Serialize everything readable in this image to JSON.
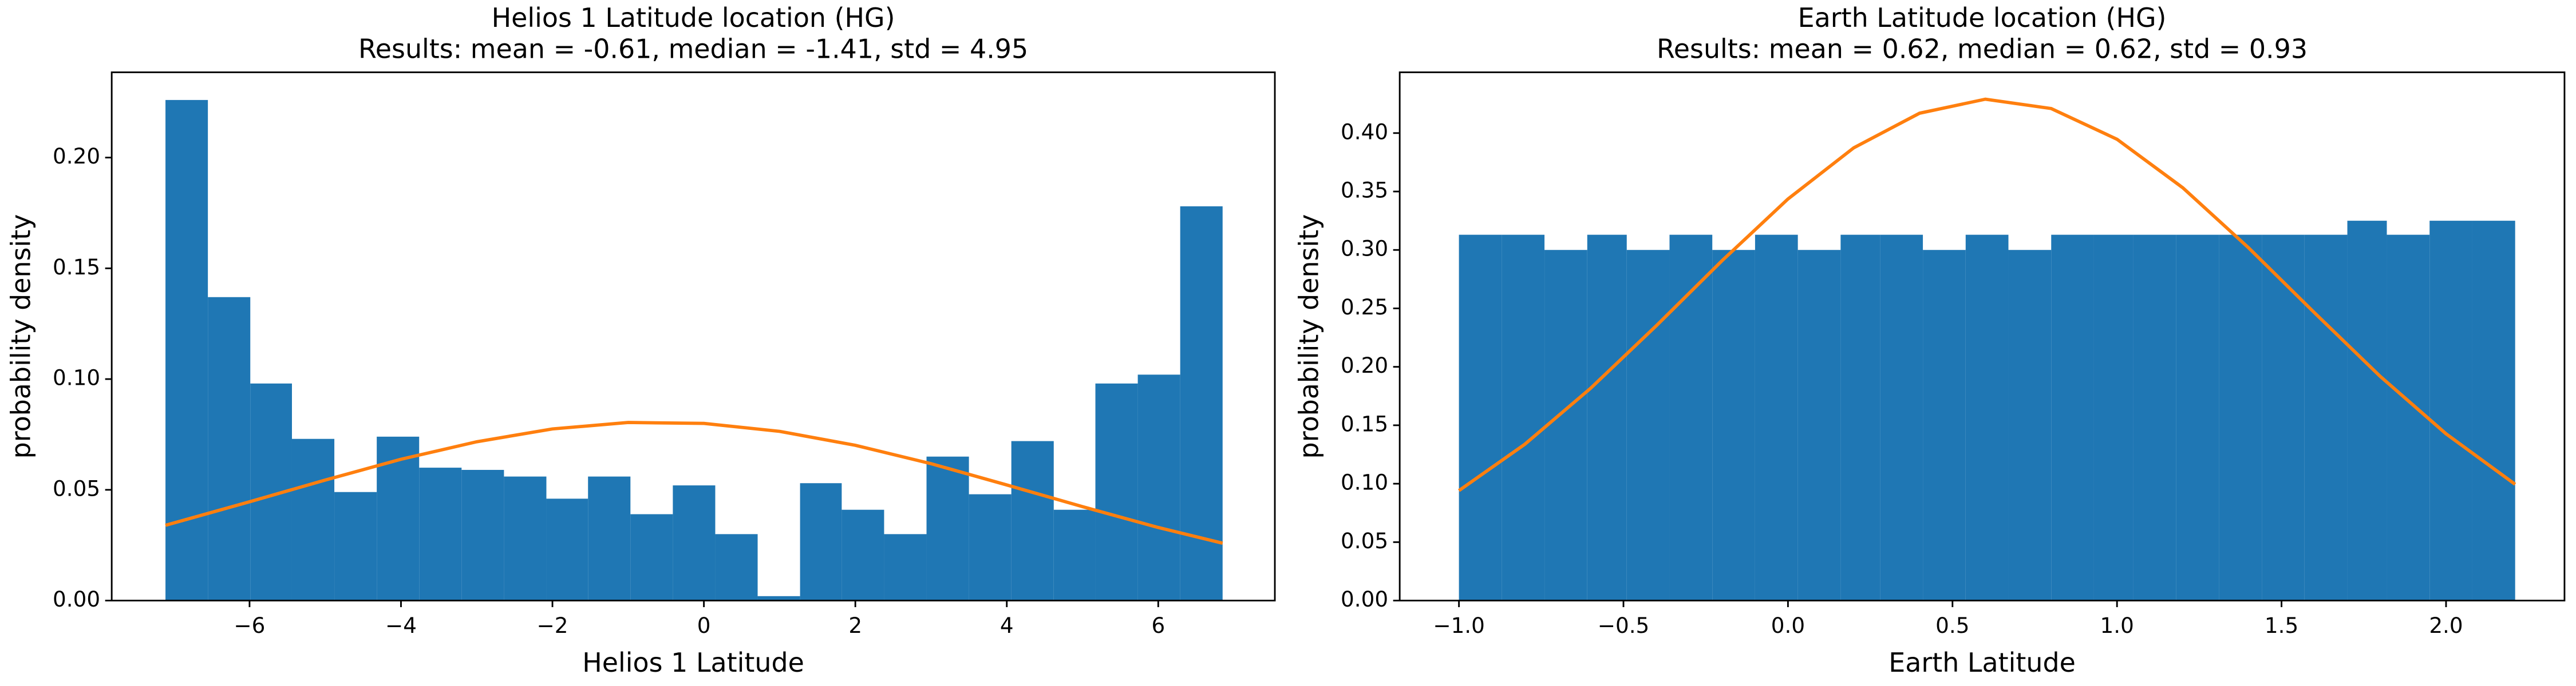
{
  "chart_data": [
    {
      "type": "histogram",
      "title": "Helios 1 Latitude location (HG)",
      "subtitle": "Results: mean = -0.61, median = -1.41, std = 4.95",
      "x_label": "Helios 1 Latitude",
      "y_label": "probability density",
      "bins": [
        -7.11,
        -6.55,
        -5.99,
        -5.44,
        -4.88,
        -4.32,
        -3.76,
        -3.2,
        -2.64,
        -2.08,
        -1.53,
        -0.97,
        -0.41,
        0.15,
        0.71,
        1.27,
        1.82,
        2.38,
        2.94,
        3.5,
        4.06,
        4.62,
        5.17,
        5.73,
        6.29,
        6.85
      ],
      "values": [
        0.226,
        0.137,
        0.098,
        0.073,
        0.049,
        0.074,
        0.06,
        0.059,
        0.056,
        0.046,
        0.056,
        0.039,
        0.052,
        0.03,
        0.002,
        0.053,
        0.041,
        0.03,
        0.065,
        0.048,
        0.072,
        0.041,
        0.098,
        0.102,
        0.178
      ],
      "color": "#1f77b4",
      "curve": {
        "color": "#ff7f0e",
        "x": [
          -7.11,
          -6,
          -5,
          -4,
          -3,
          -2,
          -1,
          0,
          1,
          2,
          3,
          4,
          5,
          6,
          6.85
        ],
        "y": [
          0.034,
          0.0446,
          0.0544,
          0.0638,
          0.0717,
          0.0775,
          0.0804,
          0.08,
          0.0764,
          0.0701,
          0.0618,
          0.0522,
          0.0424,
          0.033,
          0.0259
        ]
      },
      "xlim": [
        -7.82,
        7.54
      ],
      "ylim": [
        0,
        0.2385
      ],
      "xticks": [
        {
          "value": -6,
          "label": "−6"
        },
        {
          "value": -4,
          "label": "−4"
        },
        {
          "value": -2,
          "label": "−2"
        },
        0,
        2,
        4,
        6
      ],
      "yticks": [
        {
          "value": 0,
          "label": "0.00"
        },
        0.05,
        {
          "value": 0.1,
          "label": "0.10"
        },
        0.15,
        {
          "value": 0.2,
          "label": "0.20"
        }
      ]
    },
    {
      "type": "histogram",
      "title": "Earth Latitude location (HG)",
      "subtitle": "Results: mean = 0.62, median = 0.62, std = 0.93",
      "x_label": "Earth Latitude",
      "y_label": "probability density",
      "bins": [
        -1.0,
        -0.87,
        -0.74,
        -0.61,
        -0.49,
        -0.36,
        -0.23,
        -0.1,
        0.03,
        0.16,
        0.28,
        0.41,
        0.54,
        0.67,
        0.8,
        0.93,
        1.05,
        1.18,
        1.31,
        1.44,
        1.57,
        1.7,
        1.82,
        1.95,
        2.08,
        2.21
      ],
      "values": [
        0.313,
        0.313,
        0.3,
        0.313,
        0.3,
        0.313,
        0.3,
        0.313,
        0.3,
        0.313,
        0.313,
        0.3,
        0.313,
        0.3,
        0.313,
        0.313,
        0.313,
        0.313,
        0.313,
        0.313,
        0.313,
        0.325,
        0.313,
        0.325,
        0.325
      ],
      "color": "#1f77b4",
      "curve": {
        "color": "#ff7f0e",
        "x": [
          -1,
          -0.8,
          -0.6,
          -0.4,
          -0.2,
          0,
          0.2,
          0.4,
          0.6,
          0.8,
          1.0,
          1.2,
          1.4,
          1.6,
          1.8,
          2.0,
          2.21
        ],
        "y": [
          0.0941,
          0.1337,
          0.1816,
          0.2352,
          0.2909,
          0.3436,
          0.3874,
          0.417,
          0.429,
          0.421,
          0.3947,
          0.3532,
          0.3018,
          0.2463,
          0.1918,
          0.1427,
          0.0995
        ]
      },
      "xlim": [
        -1.18,
        2.36
      ],
      "ylim": [
        0,
        0.452
      ],
      "xticks": [
        {
          "value": -1,
          "label": "−1.0"
        },
        {
          "value": -0.5,
          "label": "−0.5"
        },
        {
          "value": 0,
          "label": "0.0"
        },
        0.5,
        {
          "value": 1,
          "label": "1.0"
        },
        1.5,
        {
          "value": 2,
          "label": "2.0"
        }
      ],
      "yticks": [
        {
          "value": 0,
          "label": "0.00"
        },
        0.05,
        {
          "value": 0.1,
          "label": "0.10"
        },
        0.15,
        {
          "value": 0.2,
          "label": "0.20"
        },
        0.25,
        {
          "value": 0.3,
          "label": "0.30"
        },
        0.35,
        {
          "value": 0.4,
          "label": "0.40"
        }
      ]
    }
  ]
}
